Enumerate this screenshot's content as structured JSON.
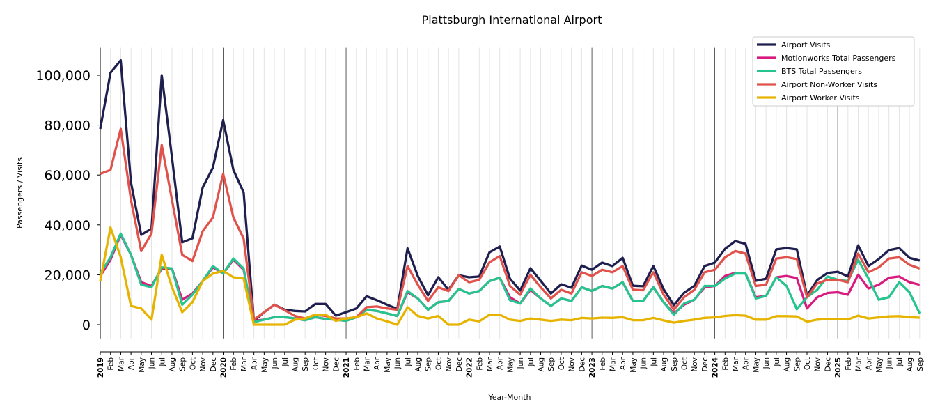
{
  "chart_data": {
    "type": "line",
    "title": "Plattsburgh International Airport",
    "xlabel": "Year-Month",
    "ylabel": "Passengers / Visits",
    "ylim": [
      -5500,
      111000
    ],
    "yticks": [
      0,
      20000,
      40000,
      60000,
      80000,
      100000
    ],
    "ytick_labels": [
      "0",
      "20,000",
      "40,000",
      "60,000",
      "80,000",
      "100,000"
    ],
    "grid": "vertical monthly lines, darker at year starts",
    "legend_position": "top-right",
    "start": "2019-01",
    "years": [
      "2019",
      "2020",
      "2021",
      "2022",
      "2023",
      "2024",
      "2025"
    ],
    "month_labels": [
      "Jan",
      "Feb",
      "Mar",
      "Apr",
      "May",
      "Jun",
      "Jul",
      "Aug",
      "Sep",
      "Oct",
      "Nov",
      "Dec"
    ],
    "series": [
      {
        "name": "Airport Visits",
        "color": "#1f1f4f",
        "values": [
          78500,
          101000,
          106000,
          57000,
          36000,
          38500,
          100000,
          67000,
          33000,
          34600,
          55000,
          63000,
          82000,
          62000,
          53000,
          1500,
          5000,
          8000,
          6000,
          5500,
          5300,
          8300,
          8300,
          3600,
          5000,
          6500,
          11400,
          9800,
          8000,
          6300,
          30600,
          19500,
          11800,
          19000,
          14000,
          19800,
          19000,
          19300,
          29000,
          31300,
          18400,
          13700,
          22600,
          17600,
          12500,
          16200,
          14800,
          23700,
          22000,
          24900,
          23500,
          26800,
          15600,
          15400,
          23500,
          14200,
          7800,
          12800,
          15600,
          23500,
          24900,
          30400,
          33500,
          32400,
          17600,
          18400,
          30200,
          30700,
          30200,
          11700,
          17900,
          20700,
          21200,
          19300,
          31800,
          23500,
          26300,
          29900,
          30700,
          26800,
          25700
        ]
      },
      {
        "name": "Motionworks Total Passengers",
        "color": "#d81b7f",
        "values": [
          19500,
          26000,
          36000,
          28000,
          17000,
          15500,
          22500,
          22500,
          10000,
          12500,
          17500,
          23000,
          20500,
          26000,
          22000,
          1500,
          2000,
          3000,
          3000,
          2500,
          1800,
          3000,
          2300,
          2000,
          1500,
          3000,
          6000,
          5500,
          4500,
          3500,
          13000,
          10500,
          6000,
          9000,
          9500,
          14300,
          12500,
          13500,
          17500,
          18800,
          11000,
          8500,
          14000,
          10500,
          7500,
          10500,
          9500,
          15000,
          13500,
          15500,
          14500,
          17000,
          9500,
          9500,
          15000,
          9000,
          4500,
          8000,
          10000,
          15000,
          15500,
          19500,
          20800,
          20500,
          11000,
          11500,
          19000,
          19500,
          18700,
          6500,
          11000,
          12700,
          13000,
          12000,
          20000,
          14500,
          16000,
          18800,
          19300,
          17000,
          16000
        ]
      },
      {
        "name": "BTS Total Passengers",
        "color": "#26c48f",
        "values": [
          20500,
          27000,
          36500,
          28000,
          16000,
          15000,
          23000,
          22500,
          8000,
          12000,
          17500,
          23500,
          20500,
          26500,
          22500,
          1000,
          2000,
          3000,
          3000,
          2500,
          1800,
          3000,
          2300,
          2000,
          1500,
          3000,
          6000,
          5500,
          4500,
          3500,
          13500,
          10500,
          6000,
          9000,
          9500,
          14300,
          12500,
          13500,
          17500,
          18800,
          9800,
          8500,
          14500,
          10500,
          7500,
          10500,
          9500,
          15000,
          13500,
          15500,
          14500,
          17000,
          9500,
          9500,
          15000,
          9000,
          4000,
          8500,
          10000,
          15500,
          15500,
          18500,
          20500,
          20500,
          10500,
          11500,
          19000,
          15500,
          6200,
          11000,
          14000,
          19300,
          18000,
          17500,
          26000,
          18500,
          10000,
          11000,
          17000,
          13000,
          4500
        ]
      },
      {
        "name": "Airport Non-Worker Visits",
        "color": "#e0524b",
        "values": [
          60500,
          62000,
          78500,
          50000,
          29500,
          36500,
          72000,
          50000,
          28000,
          25500,
          37500,
          43000,
          60500,
          43000,
          34500,
          2000,
          5000,
          8000,
          5800,
          3500,
          2500,
          4000,
          3500,
          2500,
          2500,
          3000,
          7000,
          7300,
          6500,
          6000,
          23500,
          16000,
          9500,
          15000,
          13500,
          19800,
          17000,
          18000,
          25000,
          27500,
          15500,
          12000,
          20000,
          15000,
          10500,
          14000,
          12500,
          21000,
          19500,
          22000,
          21000,
          23500,
          14000,
          13800,
          21000,
          12000,
          6000,
          11000,
          14000,
          21000,
          22000,
          27000,
          29500,
          28500,
          15500,
          16000,
          26500,
          27000,
          26300,
          11000,
          16500,
          18000,
          18000,
          17000,
          28500,
          21000,
          23000,
          26500,
          27000,
          24000,
          22500
        ]
      },
      {
        "name": "Airport Worker Visits",
        "color": "#e6b400",
        "values": [
          17500,
          39000,
          27000,
          7500,
          6500,
          2000,
          28000,
          15000,
          5000,
          9000,
          17500,
          20500,
          21500,
          19000,
          18500,
          0,
          0,
          0,
          0,
          2000,
          2500,
          4000,
          4000,
          1500,
          2500,
          3000,
          4500,
          2500,
          1300,
          0,
          7000,
          3500,
          2500,
          3500,
          0,
          0,
          2000,
          1300,
          4000,
          4000,
          2000,
          1500,
          2500,
          2000,
          1500,
          2000,
          1800,
          2700,
          2500,
          2800,
          2700,
          3000,
          1800,
          1800,
          2700,
          1700,
          800,
          1500,
          2000,
          2700,
          2900,
          3500,
          3800,
          3600,
          2000,
          2000,
          3400,
          3400,
          3300,
          1200,
          2000,
          2300,
          2300,
          2100,
          3600,
          2500,
          2900,
          3300,
          3400,
          3000,
          2800
        ]
      }
    ]
  }
}
